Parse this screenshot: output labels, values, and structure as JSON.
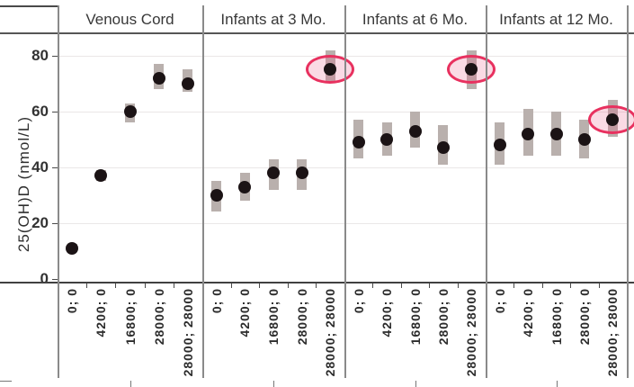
{
  "chart_data": {
    "type": "scatter",
    "title": "",
    "ylabel": "25(OH)D (nmol/L)",
    "y_ticks": [
      0,
      20,
      40,
      60,
      80
    ],
    "ylim": [
      -1,
      88
    ],
    "grid": "horizontal",
    "legend": "none",
    "categories": [
      "0; 0",
      "4200; 0",
      "16800; 0",
      "28000; 0",
      "28000; 28000"
    ],
    "panels": [
      {
        "label": "Venous Cord",
        "points": [
          {
            "category": "0; 0",
            "value": 11,
            "lo": 10,
            "hi": 12.5
          },
          {
            "category": "4200; 0",
            "value": 37,
            "lo": 35,
            "hi": 39
          },
          {
            "category": "16800; 0",
            "value": 60,
            "lo": 56,
            "hi": 63
          },
          {
            "category": "28000; 0",
            "value": 72,
            "lo": 68,
            "hi": 77
          },
          {
            "category": "28000; 28000",
            "value": 70,
            "lo": 67,
            "hi": 75
          }
        ],
        "circled_index": null
      },
      {
        "label": "Infants at 3 Mo.",
        "points": [
          {
            "category": "0; 0",
            "value": 30,
            "lo": 24,
            "hi": 35
          },
          {
            "category": "4200; 0",
            "value": 33,
            "lo": 28,
            "hi": 38
          },
          {
            "category": "16800; 0",
            "value": 38,
            "lo": 32,
            "hi": 43
          },
          {
            "category": "28000; 0",
            "value": 38,
            "lo": 32,
            "hi": 43
          },
          {
            "category": "28000; 28000",
            "value": 75,
            "lo": 71,
            "hi": 82
          }
        ],
        "circled_index": 4
      },
      {
        "label": "Infants at 6 Mo.",
        "points": [
          {
            "category": "0; 0",
            "value": 49,
            "lo": 43,
            "hi": 57
          },
          {
            "category": "4200; 0",
            "value": 50,
            "lo": 44,
            "hi": 56
          },
          {
            "category": "16800; 0",
            "value": 53,
            "lo": 47,
            "hi": 60
          },
          {
            "category": "28000; 0",
            "value": 47,
            "lo": 41,
            "hi": 55
          },
          {
            "category": "28000; 28000",
            "value": 75,
            "lo": 68,
            "hi": 82
          }
        ],
        "circled_index": 4
      },
      {
        "label": "Infants at 12 Mo.",
        "points": [
          {
            "category": "0; 0",
            "value": 48,
            "lo": 41,
            "hi": 56
          },
          {
            "category": "4200; 0",
            "value": 52,
            "lo": 44,
            "hi": 61
          },
          {
            "category": "16800; 0",
            "value": 52,
            "lo": 44,
            "hi": 60
          },
          {
            "category": "28000; 0",
            "value": 50,
            "lo": 43,
            "hi": 57
          },
          {
            "category": "28000; 28000",
            "value": 57,
            "lo": 51,
            "hi": 64
          }
        ],
        "circled_index": 4
      }
    ],
    "colors": {
      "dot": "#1b1315",
      "band": "#b9b0ad",
      "highlight_stroke": "#e8315f",
      "highlight_fill": "rgba(231,72,118,0.20)",
      "gridline": "#eae7e7",
      "axis_line": "#414141",
      "separator": "#8a8a8a",
      "text": "#323232"
    }
  }
}
